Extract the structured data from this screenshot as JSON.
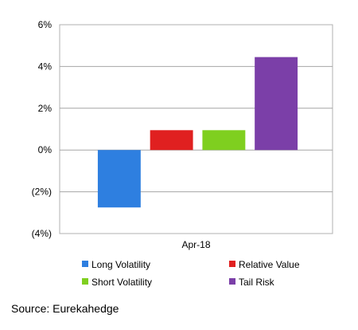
{
  "chart_data": {
    "type": "bar",
    "categories": [
      "Apr-18"
    ],
    "series": [
      {
        "name": "Long Volatility",
        "values": [
          -2.75
        ],
        "color": "#2e7fe0"
      },
      {
        "name": "Relative Value",
        "values": [
          0.95
        ],
        "color": "#e02020"
      },
      {
        "name": "Short Volatility",
        "values": [
          0.95
        ],
        "color": "#7fcf1f"
      },
      {
        "name": "Tail Risk",
        "values": [
          4.45
        ],
        "color": "#7b3fa8"
      }
    ],
    "ylim": [
      -4,
      6
    ],
    "yticks": [
      6,
      4,
      2,
      0,
      -2,
      -4
    ],
    "ytick_labels": [
      "6%",
      "4%",
      "2%",
      "0%",
      "(2%)",
      "(4%)"
    ],
    "negative_label_color": "#c00000",
    "grid": true,
    "legend_position": "bottom"
  },
  "source_text": "Source: Eurekahedge"
}
